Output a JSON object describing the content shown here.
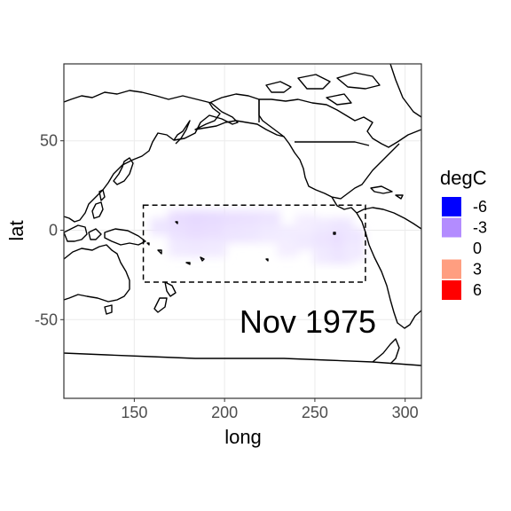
{
  "chart_data": {
    "type": "heatmap",
    "xlabel": "long",
    "ylabel": "lat",
    "xlim": [
      111,
      309
    ],
    "ylim": [
      -94,
      93
    ],
    "x_ticks": [
      150,
      200,
      250,
      300
    ],
    "y_ticks": [
      -50,
      0,
      50
    ],
    "annotation": "Nov 1975",
    "region_box": {
      "lon": [
        155,
        278
      ],
      "lat": [
        -29,
        14
      ]
    },
    "legend": {
      "title": "degC",
      "entries": [
        {
          "label": "-6",
          "color": "#0000ff"
        },
        {
          "label": "-3",
          "color": "#b38cff"
        },
        {
          "label": "0",
          "color": "#ffffff"
        },
        {
          "label": "3",
          "color": "#ff9e80"
        },
        {
          "label": "6",
          "color": "#ff0000"
        }
      ],
      "position": "right"
    },
    "anomaly_cells": [
      {
        "lon": 165,
        "lat": 2,
        "value": -1.2
      },
      {
        "lon": 175,
        "lat": 6,
        "value": -1.6
      },
      {
        "lon": 175,
        "lat": -2,
        "value": -1.4
      },
      {
        "lon": 175,
        "lat": -10,
        "value": -1.0
      },
      {
        "lon": 185,
        "lat": 6,
        "value": -1.8
      },
      {
        "lon": 185,
        "lat": -2,
        "value": -1.6
      },
      {
        "lon": 185,
        "lat": -10,
        "value": -1.1
      },
      {
        "lon": 195,
        "lat": 6,
        "value": -1.7
      },
      {
        "lon": 195,
        "lat": -2,
        "value": -1.5
      },
      {
        "lon": 195,
        "lat": -10,
        "value": -1.0
      },
      {
        "lon": 205,
        "lat": 6,
        "value": -1.5
      },
      {
        "lon": 205,
        "lat": -2,
        "value": -1.3
      },
      {
        "lon": 215,
        "lat": 6,
        "value": -1.4
      },
      {
        "lon": 215,
        "lat": -2,
        "value": -1.2
      },
      {
        "lon": 225,
        "lat": 6,
        "value": -1.3
      },
      {
        "lon": 225,
        "lat": -2,
        "value": -1.0
      },
      {
        "lon": 235,
        "lat": -2,
        "value": -0.9
      },
      {
        "lon": 235,
        "lat": -10,
        "value": -0.8
      },
      {
        "lon": 245,
        "lat": 4,
        "value": -0.8
      },
      {
        "lon": 245,
        "lat": -6,
        "value": -1.0
      },
      {
        "lon": 255,
        "lat": 2,
        "value": -1.0
      },
      {
        "lon": 255,
        "lat": -6,
        "value": -1.3
      },
      {
        "lon": 255,
        "lat": -14,
        "value": -1.0
      },
      {
        "lon": 265,
        "lat": 2,
        "value": -1.2
      },
      {
        "lon": 265,
        "lat": -6,
        "value": -1.5
      },
      {
        "lon": 265,
        "lat": -14,
        "value": -1.3
      },
      {
        "lon": 272,
        "lat": -4,
        "value": -1.2
      },
      {
        "lon": 272,
        "lat": -12,
        "value": -1.0
      }
    ]
  }
}
